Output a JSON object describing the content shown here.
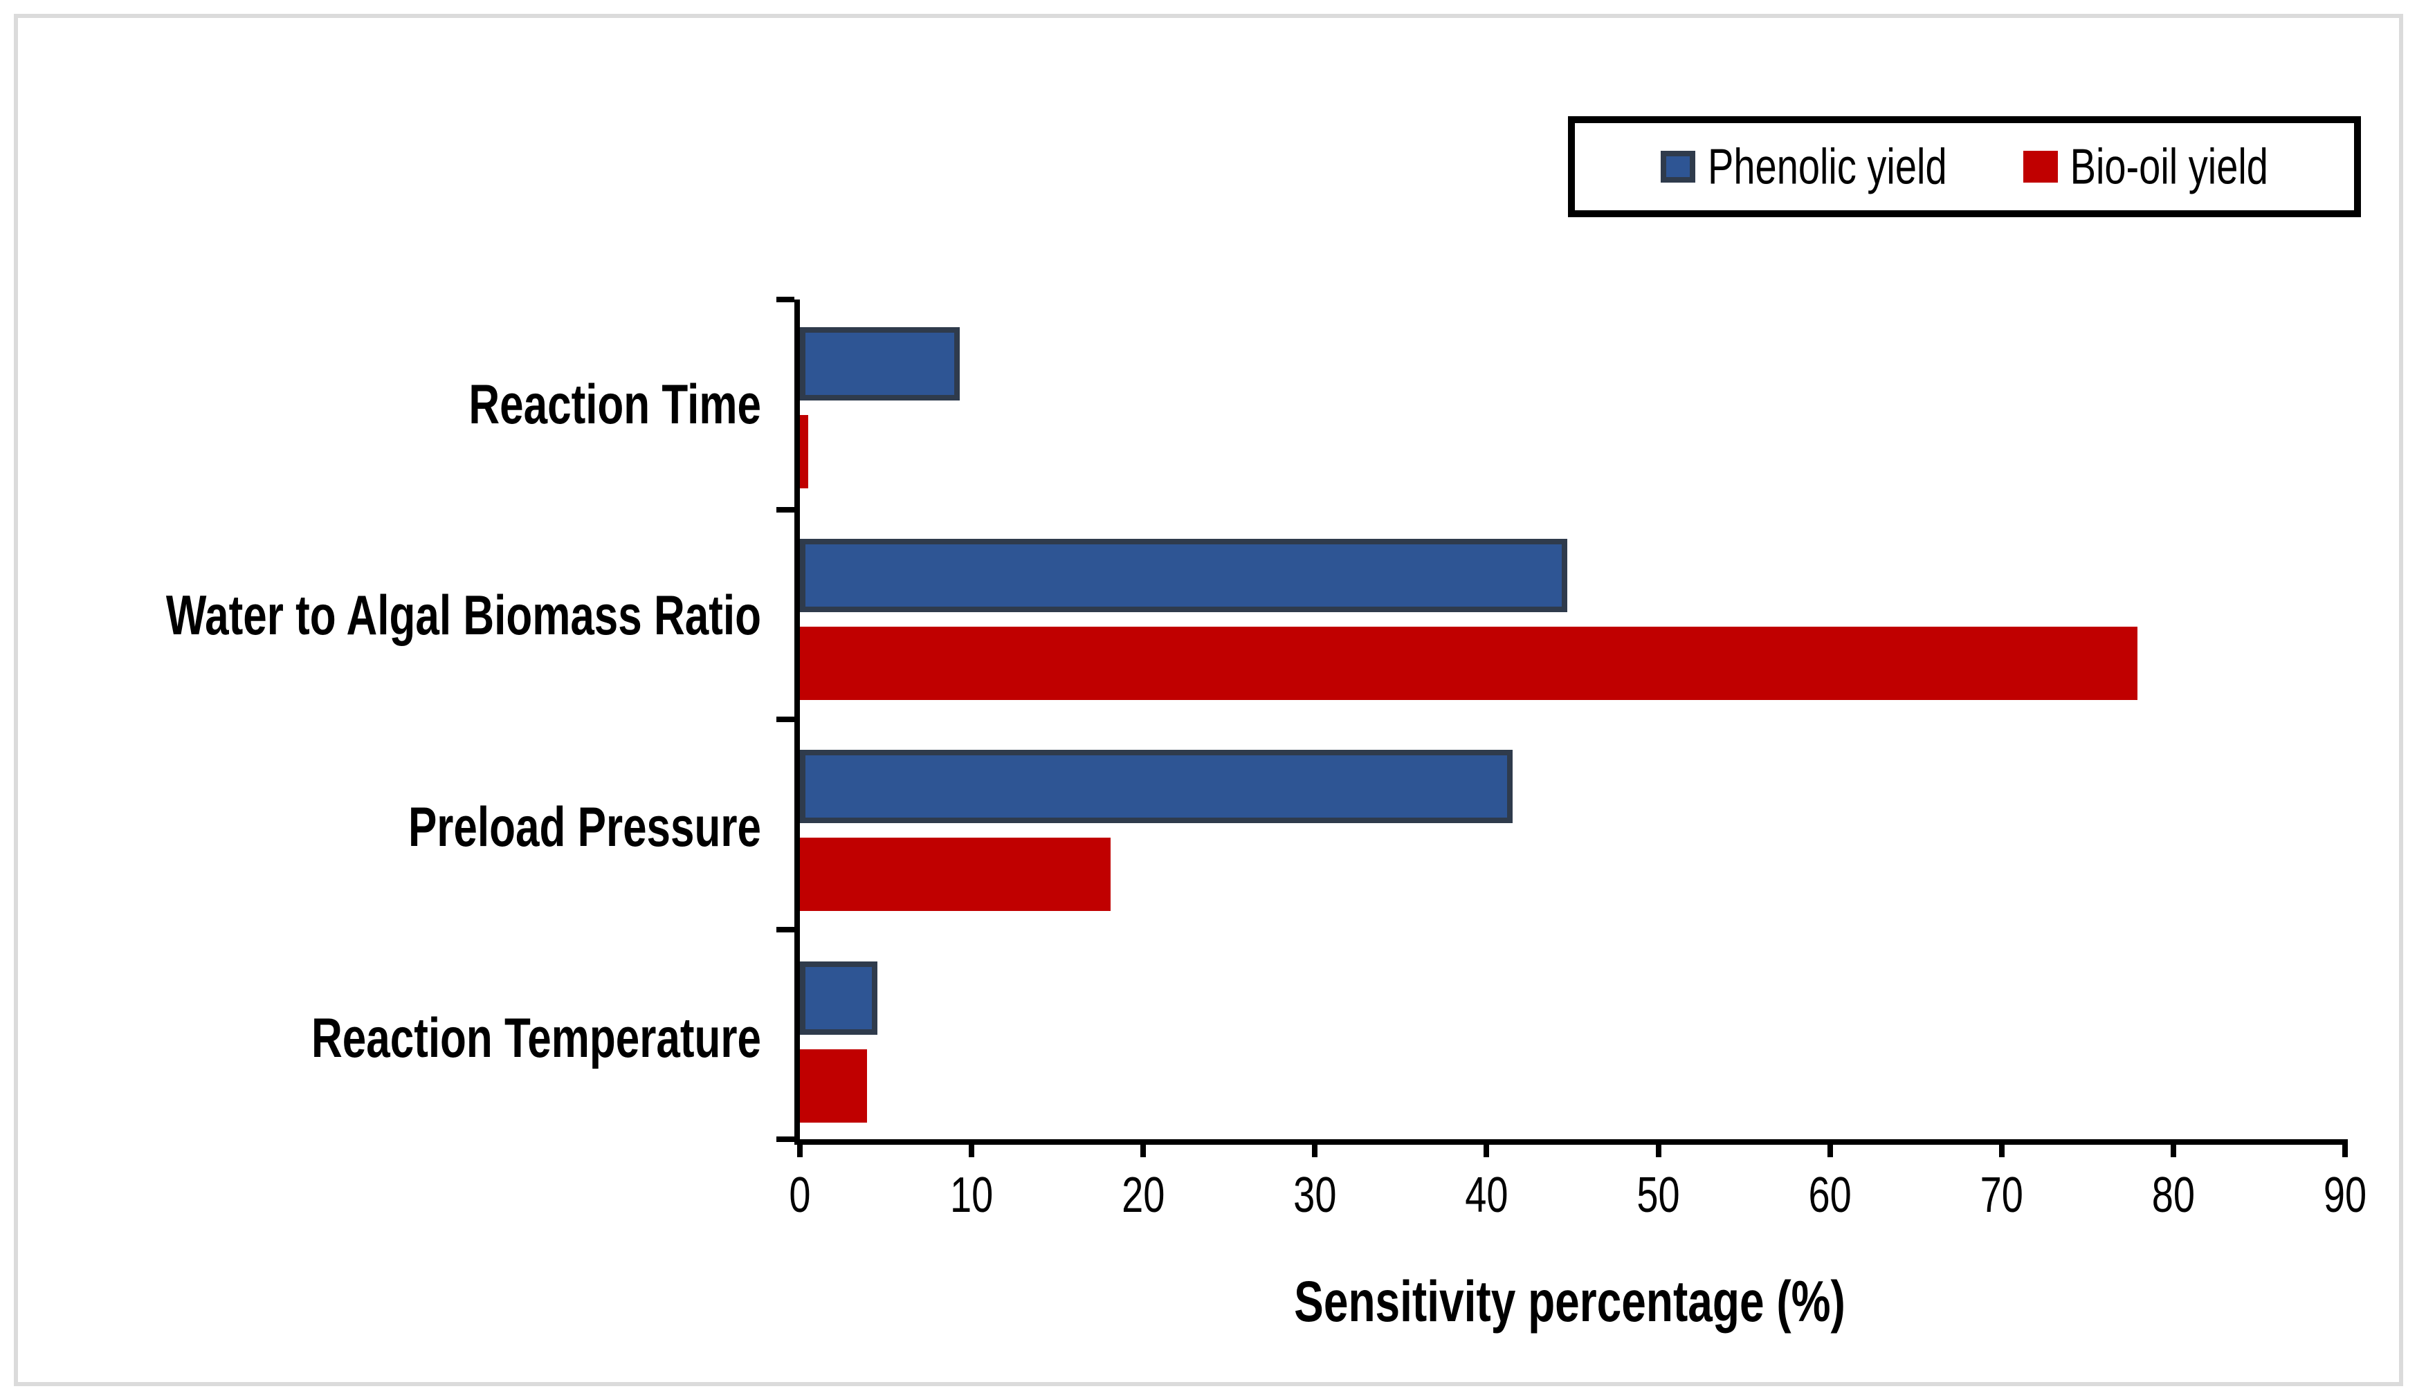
{
  "figure": {
    "background": "#ffffff",
    "frame_color": "#DBDBDB"
  },
  "legend": {
    "items": [
      {
        "label": "Phenolic yield",
        "color": "#2E5594",
        "border_color": "#2F3B4C"
      },
      {
        "label": "Bio-oil yield",
        "color": "#C00000",
        "border_color": "#C00000"
      }
    ]
  },
  "chart_data": {
    "type": "bar",
    "orientation": "horizontal",
    "title": "",
    "categories": [
      "Reaction Time",
      "Water to Algal Biomass Ratio",
      "Preload Pressure",
      "Reaction Temperature"
    ],
    "series": [
      {
        "name": "Phenolic yield",
        "color": "#2E5594",
        "border_color": "#2F3B4C",
        "border_px": 8,
        "values": [
          9.3,
          44.7,
          41.5,
          4.5
        ]
      },
      {
        "name": "Bio-oil yield",
        "color": "#C00000",
        "border_color": "#C00000",
        "border_px": 0,
        "values": [
          0.5,
          77.9,
          18.1,
          3.9
        ]
      }
    ],
    "xlabel": "Sensitivity percentage (%)",
    "ylabel": "",
    "xticks": [
      0,
      10,
      20,
      30,
      40,
      50,
      60,
      70,
      80,
      90
    ],
    "xlim": [
      0,
      90
    ],
    "grid": false,
    "legend_position": "top-right",
    "axis_color": "#000000"
  }
}
